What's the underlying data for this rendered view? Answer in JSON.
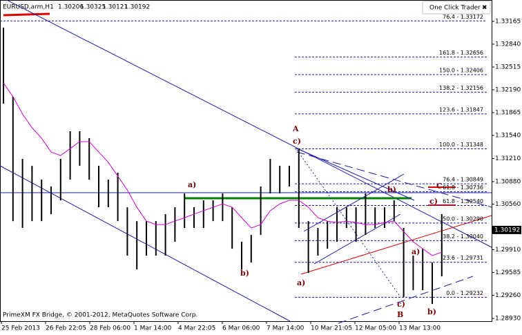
{
  "chart_data": {
    "type": "ohlc",
    "title": "EURUSD,arm,H1",
    "ohlc": [
      1.30206,
      1.30325,
      1.30121,
      1.30192
    ],
    "panel_title": "One Click Trader",
    "panel_close": "✖",
    "footer": "PrimeXM FX Bridge, © 2001-2012, MetaQuotes Software Corp.",
    "categories": [
      "25 Feb 2013",
      "26 Feb 22:05",
      "28 Feb 06:00",
      "1 Mar 14:00",
      "4 Mar 22:05",
      "6 Mar 06:00",
      "7 Mar 14:00",
      "10 Mar 21:05",
      "12 Mar 05:00",
      "13 Mar 13:00"
    ],
    "ylim": [
      1.28891,
      1.3347
    ],
    "yticks": [
      1.33165,
      {
        "value": 1.3284,
        "label": "1.32840"
      },
      1.32515,
      {
        "value": 1.3219,
        "label": "1.32190"
      },
      1.31865,
      {
        "value": 1.3154,
        "label": "1.31540"
      },
      {
        "value": 1.3121,
        "label": "1.31210"
      },
      {
        "value": 1.3088,
        "label": "1.30880"
      },
      {
        "value": 1.3056,
        "label": "1.30560"
      },
      {
        "value": 1.2991,
        "label": "1.29910"
      },
      1.29585,
      {
        "value": 1.2926,
        "label": "1.29260"
      },
      {
        "value": 1.2893,
        "label": "1.28930"
      }
    ],
    "current_price": 1.30192,
    "grid": false,
    "bars": {
      "color": "#000000",
      "high": [
        1.33076,
        1.32091,
        1.31205,
        1.31106,
        1.30909,
        1.30811,
        1.31205,
        1.31599,
        1.31599,
        1.315,
        1.31106,
        1.30909,
        1.31008,
        1.30515,
        1.30318,
        1.30318,
        1.30318,
        1.30417,
        1.30515,
        1.30712,
        1.30515,
        1.30614,
        1.30614,
        1.30712,
        1.30515,
        1.30023,
        1.30121,
        1.30811,
        1.31205,
        1.31106,
        1.31106,
        1.31352,
        1.30318,
        1.3022,
        1.30318,
        1.30515,
        1.30515,
        1.30515,
        1.30712,
        1.30515,
        1.30515,
        1.30614,
        1.3022,
        1.29826,
        1.29924,
        1.29727,
        1.30417
      ],
      "low": [
        1.31993,
        1.30318,
        1.3022,
        1.30318,
        1.30318,
        1.30417,
        1.30614,
        1.30909,
        1.31106,
        1.30909,
        1.30515,
        1.30515,
        1.30318,
        1.29826,
        1.29629,
        1.29826,
        1.29826,
        1.29826,
        1.30023,
        1.3022,
        1.3022,
        1.3022,
        1.30318,
        1.30318,
        1.29924,
        1.29629,
        1.29727,
        1.30121,
        1.30712,
        1.30712,
        1.30811,
        1.3022,
        1.29579,
        1.29826,
        1.29924,
        1.30023,
        1.3022,
        1.30023,
        1.30121,
        1.3022,
        1.3022,
        1.30318,
        1.29235,
        1.29333,
        1.29333,
        1.29136,
        1.2953
      ]
    },
    "ma": {
      "color": "#d000d0",
      "values": [
        1.32288,
        1.32091,
        1.31845,
        1.31648,
        1.315,
        1.31303,
        1.31254,
        1.31352,
        1.31451,
        1.31451,
        1.31303,
        1.31155,
        1.30958,
        1.30761,
        1.30515,
        1.30318,
        1.30269,
        1.30269,
        1.30318,
        1.30367,
        1.30417,
        1.30466,
        1.30515,
        1.30564,
        1.30515,
        1.30367,
        1.3022,
        1.30269,
        1.30466,
        1.30564,
        1.30614,
        1.30614,
        1.30515,
        1.30367,
        1.30318,
        1.30298,
        1.30318,
        1.30298,
        1.30269,
        1.30269,
        1.30298,
        1.30318,
        1.3017,
        1.30023,
        1.29924,
        1.29826,
        1.29875
      ]
    },
    "fib_levels": [
      {
        "value": 1.33172,
        "label": "76.4 - 1.33172"
      },
      {
        "value": 1.32656,
        "label": "161.8 - 1.32656"
      },
      {
        "value": 1.32406,
        "label": "150.0 - 1.32406"
      },
      {
        "value": 1.32156,
        "label": "138.2 - 1.32156"
      },
      {
        "value": 1.31847,
        "label": "123.6 - 1.31847"
      },
      {
        "value": 1.31348,
        "label": "100.0 - 1.31348"
      },
      {
        "value": 1.30849,
        "label": "76.4 - 1.30849"
      },
      {
        "value": 1.30736,
        "label": "61.8 - 1.30736"
      },
      {
        "value": 1.3054,
        "label": "61.8 - 1.30540"
      },
      {
        "value": 1.3029,
        "label": "50.0 - 1.30290"
      },
      {
        "value": 1.3004,
        "label": "38.2 - 1.30040"
      },
      {
        "value": 1.29731,
        "label": "23.6 - 1.29731"
      },
      {
        "value": 1.29232,
        "label": "0.0 - 1.29232"
      }
    ],
    "annotations": [
      "A",
      "c)",
      "a)",
      "b)",
      "a)",
      "b)",
      "C",
      "c)",
      "a)",
      "c)",
      "B",
      "b)"
    ]
  }
}
